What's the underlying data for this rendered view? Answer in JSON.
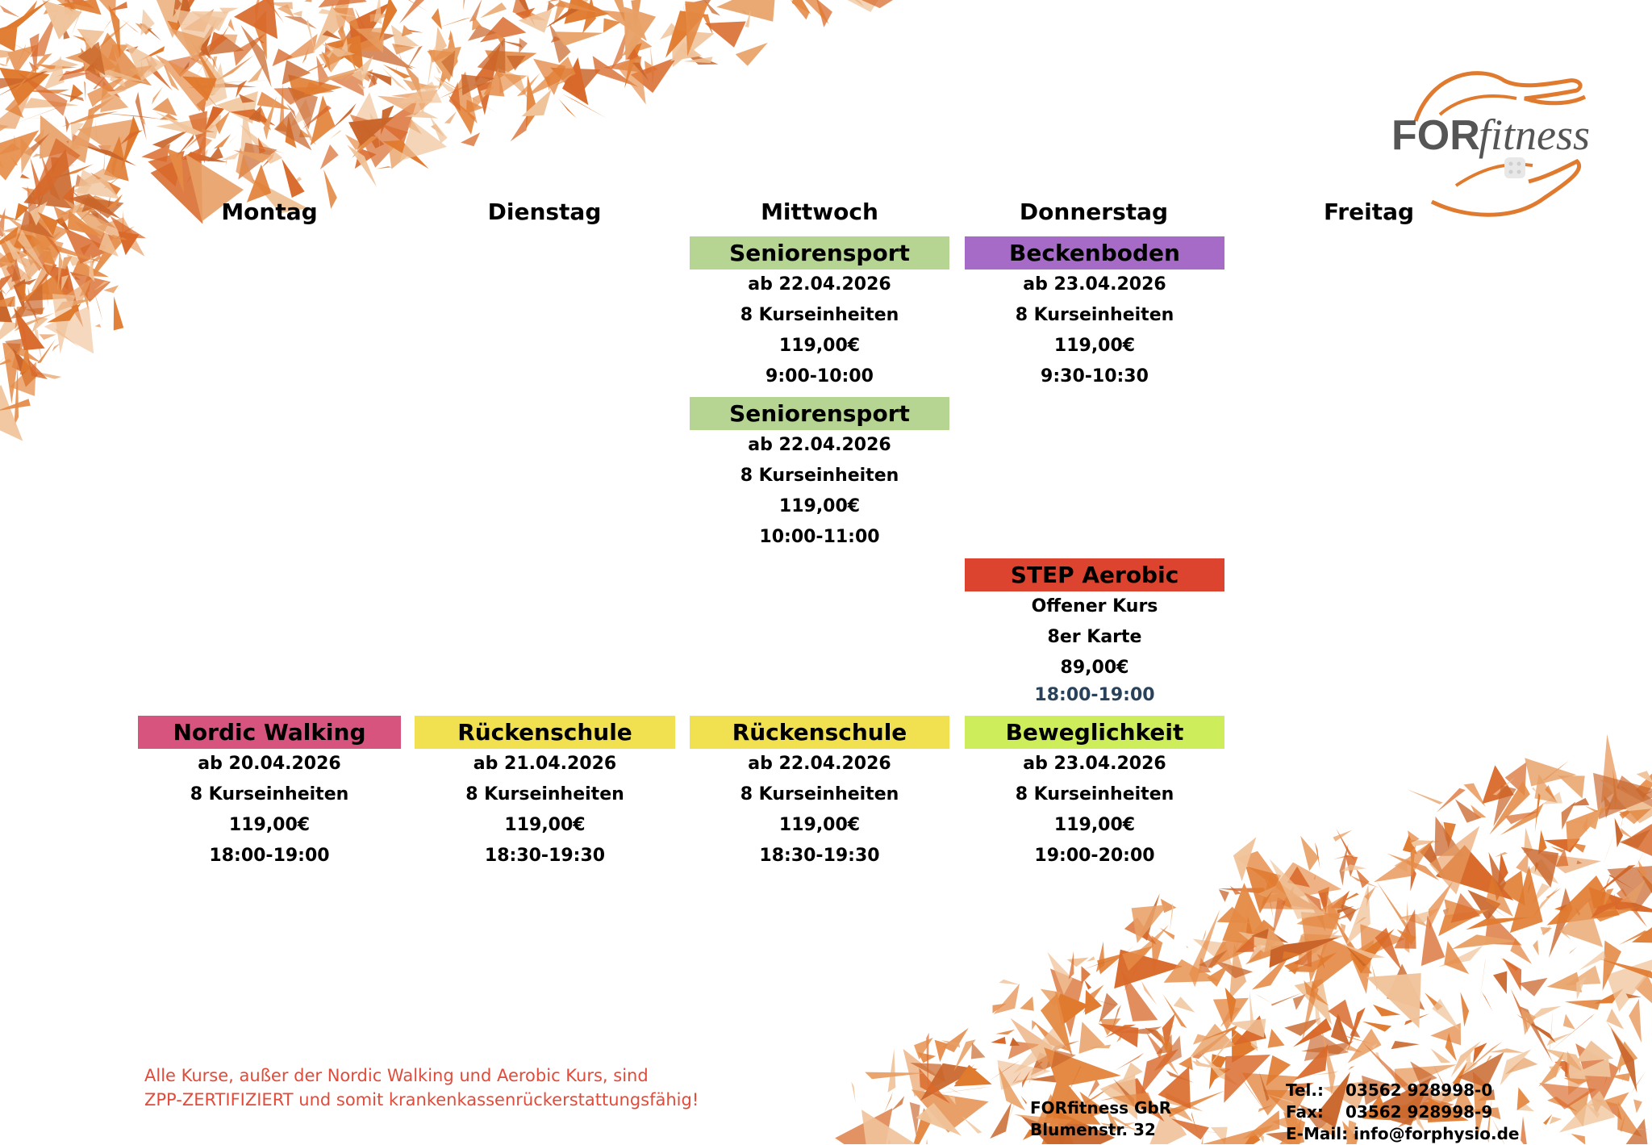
{
  "days": [
    "Montag",
    "Dienstag",
    "Mittwoch",
    "Donnerstag",
    "Freitag"
  ],
  "courses": [
    {
      "title": "Seniorensport",
      "color": "#b6d592",
      "day": "Mittwoch",
      "lines": [
        "ab 22.04.2026",
        "8 Kurseinheiten",
        "119,00€",
        "9:00-10:00"
      ]
    },
    {
      "title": "Beckenboden",
      "color": "#a56bc7",
      "day": "Donnerstag",
      "lines": [
        "ab 23.04.2026",
        "8 Kurseinheiten",
        "119,00€",
        "9:30-10:30"
      ]
    },
    {
      "title": "Seniorensport",
      "color": "#b6d592",
      "day": "Mittwoch",
      "lines": [
        "ab 22.04.2026",
        "8 Kurseinheiten",
        "119,00€",
        "10:00-11:00"
      ]
    },
    {
      "title": "STEP Aerobic",
      "color": "#dc4430",
      "day": "Donnerstag",
      "lines": [
        "Offener Kurs",
        "8er Karte",
        "89,00€",
        "18:00-19:00"
      ]
    },
    {
      "title": "Nordic Walking",
      "color": "#d7547f",
      "day": "Montag",
      "lines": [
        "ab 20.04.2026",
        "8 Kurseinheiten",
        "119,00€",
        "18:00-19:00"
      ]
    },
    {
      "title": "Rückenschule",
      "color": "#f1e04f",
      "day": "Dienstag",
      "lines": [
        "ab 21.04.2026",
        "8 Kurseinheiten",
        "119,00€",
        "18:30-19:30"
      ]
    },
    {
      "title": "Rückenschule",
      "color": "#f1e04f",
      "day": "Mittwoch",
      "lines": [
        "ab 22.04.2026",
        "8 Kurseinheiten",
        "119,00€",
        "18:30-19:30"
      ]
    },
    {
      "title": "Beweglichkeit",
      "color": "#cdee5a",
      "day": "Donnerstag",
      "lines": [
        "ab 23.04.2026",
        "8 Kurseinheiten",
        "119,00€",
        "19:00-20:00"
      ]
    }
  ],
  "note": {
    "line1": "Alle Kurse, außer der Nordic Walking und Aerobic Kurs, sind",
    "line2": "ZPP-ZERTIFIZIERT und somit krankenkassenrückerstattungsfähig!"
  },
  "address": {
    "name": "FORfitness GbR",
    "street": "Blumenstr. 32"
  },
  "contact": {
    "tel_label": "Tel.:",
    "tel": "03562 928998-0",
    "fax_label": "Fax:",
    "fax": "03562 928998-9",
    "email_label": "E-Mail:",
    "email": "info@forphysio.de"
  },
  "logo": {
    "text_bold": "FOR",
    "text_italic": "fitness"
  },
  "colors": {
    "accent": "#e07a2e",
    "note": "#e24b3a"
  }
}
